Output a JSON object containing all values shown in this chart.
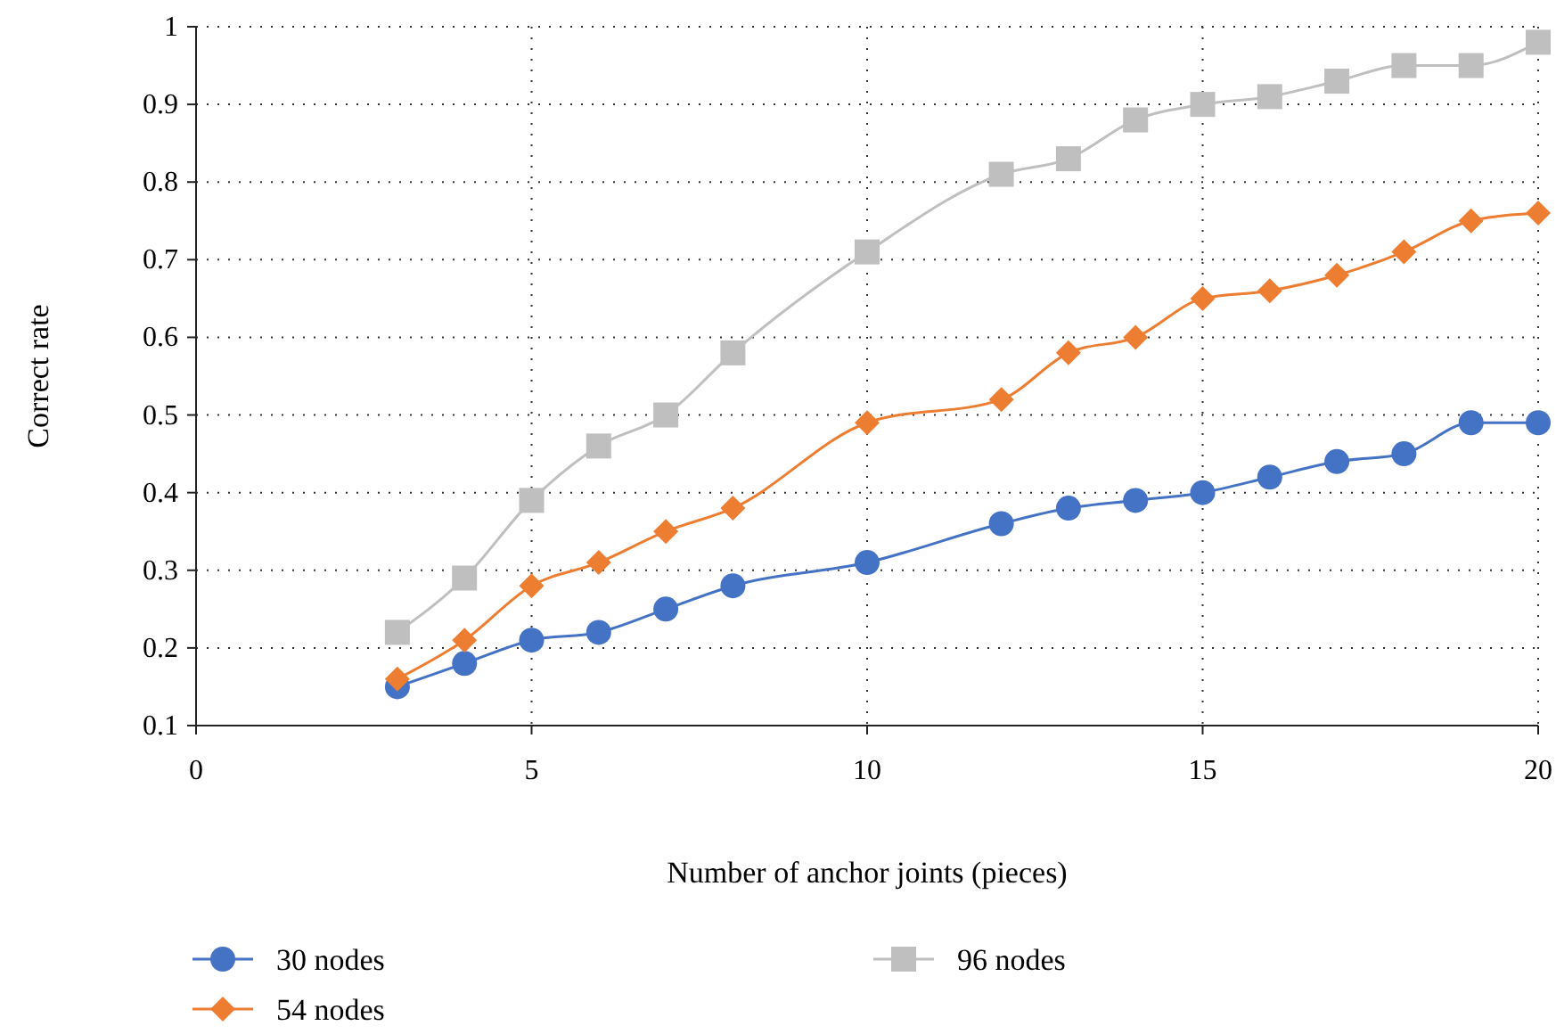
{
  "chart_data": {
    "type": "line",
    "xlabel": "Number of anchor joints (pieces)",
    "ylabel": "Correct rate",
    "x": [
      3,
      4,
      5,
      6,
      7,
      8,
      10,
      12,
      13,
      14,
      15,
      16,
      17,
      18,
      19,
      20
    ],
    "series": [
      {
        "name": "30 nodes",
        "color": "#4472c4",
        "marker": "circle",
        "values": [
          0.15,
          0.18,
          0.21,
          0.22,
          0.25,
          0.28,
          0.31,
          0.36,
          0.38,
          0.39,
          0.4,
          0.42,
          0.44,
          0.45,
          0.49,
          0.49
        ]
      },
      {
        "name": "54 nodes",
        "color": "#ed7d31",
        "marker": "diamond",
        "values": [
          0.16,
          0.21,
          0.28,
          0.31,
          0.35,
          0.38,
          0.49,
          0.52,
          0.58,
          0.6,
          0.65,
          0.66,
          0.68,
          0.71,
          0.75,
          0.76
        ]
      },
      {
        "name": "96 nodes",
        "color": "#bfbfbf",
        "marker": "square",
        "values": [
          0.22,
          0.29,
          0.39,
          0.46,
          0.5,
          0.58,
          0.71,
          0.81,
          0.83,
          0.88,
          0.9,
          0.91,
          0.93,
          0.95,
          0.95,
          0.98
        ]
      }
    ],
    "xlim": [
      0,
      20
    ],
    "xticks": [
      0,
      5,
      10,
      15,
      20
    ],
    "ylim": [
      0.1,
      1
    ],
    "yticks": [
      0.1,
      0.2,
      0.3,
      0.4,
      0.5,
      0.6,
      0.7,
      0.8,
      0.9,
      1
    ],
    "grid": true,
    "legend": "bottom"
  }
}
